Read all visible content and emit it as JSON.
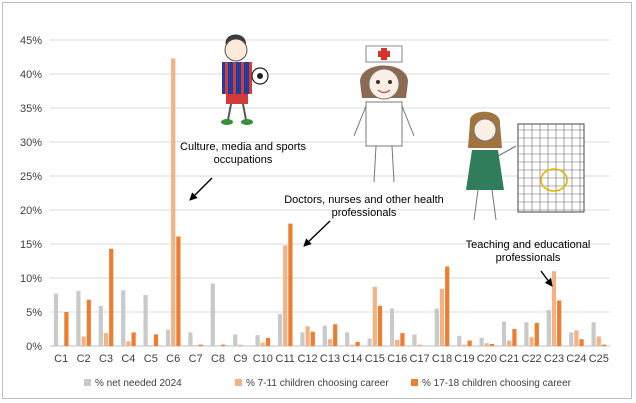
{
  "chart_data": {
    "type": "bar",
    "categories": [
      "C1",
      "C2",
      "C3",
      "C4",
      "C5",
      "C6",
      "C7",
      "C8",
      "C9",
      "C10",
      "C11",
      "C12",
      "C13",
      "C14",
      "C15",
      "C16",
      "C17",
      "C18",
      "C19",
      "C20",
      "C21",
      "C22",
      "C23",
      "C24",
      "C25"
    ],
    "series": [
      {
        "name": "% net needed 2024",
        "color": "#c9c9c9",
        "values": [
          7.7,
          8.1,
          5.9,
          8.2,
          7.5,
          2.4,
          2.0,
          9.2,
          1.7,
          1.6,
          4.7,
          2.0,
          3.0,
          2.0,
          1.1,
          5.5,
          1.7,
          5.5,
          1.5,
          1.2,
          3.6,
          3.5,
          5.3,
          2.0,
          3.5
        ]
      },
      {
        "name": "% 7-11 children choosing career",
        "color": "#f4b183",
        "values": [
          0.0,
          1.4,
          1.9,
          0.7,
          0.1,
          42.3,
          0.1,
          0.0,
          0.2,
          0.5,
          14.8,
          2.9,
          1.0,
          0.2,
          8.7,
          0.9,
          0.2,
          8.4,
          0.2,
          0.4,
          0.8,
          1.3,
          11.0,
          2.3,
          1.4
        ]
      },
      {
        "name": "% 17-18 children choosing career",
        "color": "#ed7d31",
        "values": [
          5.0,
          6.8,
          14.3,
          2.0,
          1.7,
          16.1,
          0.2,
          0.2,
          0.0,
          1.2,
          18.0,
          2.1,
          3.2,
          0.6,
          5.9,
          1.9,
          0.0,
          11.7,
          0.8,
          0.3,
          2.5,
          3.4,
          6.7,
          1.0,
          0.2
        ]
      }
    ],
    "y_ticks": [
      "0%",
      "5%",
      "10%",
      "15%",
      "20%",
      "25%",
      "30%",
      "35%",
      "40%",
      "45%"
    ],
    "ylim": [
      0,
      45
    ],
    "grid": "horizontal",
    "legend": "bottom",
    "annotations": [
      {
        "category": "C6",
        "lines": [
          "Culture, media and sports",
          "occupations"
        ]
      },
      {
        "category": "C11",
        "lines": [
          "Doctors, nurses and other health",
          "professionals"
        ]
      },
      {
        "category": "C23",
        "lines": [
          "Teaching and educational",
          "professionals"
        ]
      }
    ],
    "illustrations": [
      "drawing of footballer",
      "drawing of nurse",
      "drawing of teacher at board"
    ]
  }
}
